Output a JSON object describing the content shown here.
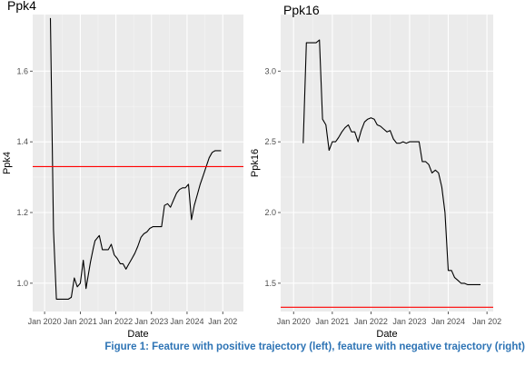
{
  "caption": "Figure 1: Feature with positive trajectory (left), feature with negative trajectory (right)",
  "colors": {
    "panel_bg": "#ebebeb",
    "grid_major": "#ffffff",
    "grid_minor": "#f5f5f5",
    "line": "#000000",
    "reference": "#ff0000",
    "tick_text": "#4d4d4d",
    "caption": "#2e74b5"
  },
  "chart_data": [
    {
      "type": "line",
      "title": "Ppk4",
      "xlabel": "Date",
      "ylabel": "Ppk4",
      "x_is_date": true,
      "xlim": [
        "2019-09-01",
        "2025-08-01"
      ],
      "ylim": [
        0.92,
        1.76
      ],
      "x_ticks": [
        {
          "date": "2020-01-01",
          "label": "Jan 2020"
        },
        {
          "date": "2021-01-01",
          "label": "Jan 2021"
        },
        {
          "date": "2022-01-01",
          "label": "Jan 2022"
        },
        {
          "date": "2023-01-01",
          "label": "Jan 2023"
        },
        {
          "date": "2024-01-01",
          "label": "Jan 2024"
        },
        {
          "date": "2025-01-01",
          "label": "Jan 202"
        }
      ],
      "y_ticks": [
        {
          "value": 1.0,
          "label": "1.0"
        },
        {
          "value": 1.2,
          "label": "1.2"
        },
        {
          "value": 1.4,
          "label": "1.4"
        },
        {
          "value": 1.6,
          "label": "1.6"
        }
      ],
      "reference_line": 1.33,
      "grid": true,
      "series": [
        {
          "x": [
            "2020-03-01",
            "2020-04-01",
            "2020-05-01",
            "2020-07-01",
            "2020-09-01",
            "2020-10-01",
            "2020-11-01",
            "2020-12-01",
            "2021-01-01",
            "2021-02-01",
            "2021-02-15",
            "2021-03-01",
            "2021-04-15",
            "2021-05-15",
            "2021-06-01",
            "2021-07-15",
            "2021-08-15",
            "2021-09-15",
            "2021-10-15",
            "2021-11-15",
            "2021-12-15",
            "2022-01-15",
            "2022-02-15",
            "2022-03-15",
            "2022-04-15",
            "2022-05-15",
            "2022-06-15",
            "2022-07-15",
            "2022-08-15",
            "2022-09-15",
            "2022-10-15",
            "2022-11-15",
            "2022-12-15",
            "2023-01-15",
            "2023-02-15",
            "2023-03-15",
            "2023-04-15",
            "2023-05-15",
            "2023-06-15",
            "2023-07-15",
            "2023-08-15",
            "2023-09-15",
            "2023-10-15",
            "2023-11-15",
            "2023-12-15",
            "2024-01-15",
            "2024-02-15",
            "2024-03-15",
            "2024-04-15",
            "2024-05-15",
            "2024-06-15",
            "2024-07-15",
            "2024-08-15",
            "2024-09-15",
            "2024-10-15",
            "2024-11-15",
            "2024-12-15"
          ],
          "y": [
            1.75,
            1.15,
            0.955,
            0.955,
            0.955,
            0.96,
            1.015,
            0.99,
            1.0,
            1.065,
            1.03,
            0.985,
            1.06,
            1.1,
            1.12,
            1.135,
            1.095,
            1.095,
            1.095,
            1.11,
            1.08,
            1.07,
            1.055,
            1.055,
            1.04,
            1.055,
            1.07,
            1.085,
            1.105,
            1.13,
            1.14,
            1.145,
            1.155,
            1.16,
            1.16,
            1.16,
            1.16,
            1.22,
            1.225,
            1.215,
            1.235,
            1.255,
            1.265,
            1.27,
            1.27,
            1.28,
            1.18,
            1.22,
            1.25,
            1.28,
            1.305,
            1.33,
            1.355,
            1.37,
            1.375,
            1.375,
            1.375
          ]
        }
      ]
    },
    {
      "type": "line",
      "title": "Ppk16",
      "xlabel": "Date",
      "ylabel": "Ppk16",
      "x_is_date": true,
      "xlim": [
        "2019-09-01",
        "2025-03-01"
      ],
      "ylim": [
        1.3,
        3.4
      ],
      "x_ticks": [
        {
          "date": "2020-01-01",
          "label": "Jan 2020"
        },
        {
          "date": "2021-01-01",
          "label": "Jan 2021"
        },
        {
          "date": "2022-01-01",
          "label": "Jan 2022"
        },
        {
          "date": "2023-01-01",
          "label": "Jan 2023"
        },
        {
          "date": "2024-01-01",
          "label": "Jan 2024"
        },
        {
          "date": "2025-01-01",
          "label": "Jan 202"
        }
      ],
      "y_ticks": [
        {
          "value": 1.5,
          "label": "1.5"
        },
        {
          "value": 2.0,
          "label": "2.0"
        },
        {
          "value": 2.5,
          "label": "2.5"
        },
        {
          "value": 3.0,
          "label": "3.0"
        }
      ],
      "reference_line": 1.33,
      "grid": true,
      "series": [
        {
          "x": [
            "2020-04-01",
            "2020-05-01",
            "2020-06-01",
            "2020-07-01",
            "2020-08-01",
            "2020-09-01",
            "2020-10-01",
            "2020-11-01",
            "2020-12-01",
            "2021-01-01",
            "2021-02-01",
            "2021-03-01",
            "2021-04-01",
            "2021-05-01",
            "2021-06-01",
            "2021-07-01",
            "2021-08-01",
            "2021-09-01",
            "2021-10-01",
            "2021-11-01",
            "2021-12-01",
            "2022-01-01",
            "2022-02-01",
            "2022-03-01",
            "2022-04-01",
            "2022-05-01",
            "2022-06-01",
            "2022-07-01",
            "2022-08-01",
            "2022-09-01",
            "2022-10-01",
            "2022-11-01",
            "2022-12-01",
            "2023-01-01",
            "2023-02-01",
            "2023-03-01",
            "2023-04-01",
            "2023-05-01",
            "2023-06-01",
            "2023-07-01",
            "2023-08-01",
            "2023-09-01",
            "2023-10-01",
            "2023-11-01",
            "2023-12-01",
            "2024-01-01",
            "2024-02-01",
            "2024-03-01",
            "2024-04-01",
            "2024-05-01",
            "2024-06-01",
            "2024-07-01",
            "2024-08-01",
            "2024-09-01",
            "2024-10-01",
            "2024-11-01"
          ],
          "y": [
            2.49,
            3.2,
            3.2,
            3.2,
            3.2,
            3.22,
            2.66,
            2.62,
            2.44,
            2.5,
            2.5,
            2.53,
            2.57,
            2.6,
            2.62,
            2.57,
            2.57,
            2.5,
            2.58,
            2.64,
            2.66,
            2.67,
            2.66,
            2.62,
            2.61,
            2.59,
            2.57,
            2.58,
            2.52,
            2.49,
            2.49,
            2.5,
            2.49,
            2.5,
            2.5,
            2.5,
            2.5,
            2.36,
            2.36,
            2.34,
            2.28,
            2.3,
            2.28,
            2.18,
            2.0,
            1.59,
            1.59,
            1.54,
            1.52,
            1.5,
            1.5,
            1.49,
            1.49,
            1.49,
            1.49,
            1.49
          ]
        }
      ]
    }
  ]
}
